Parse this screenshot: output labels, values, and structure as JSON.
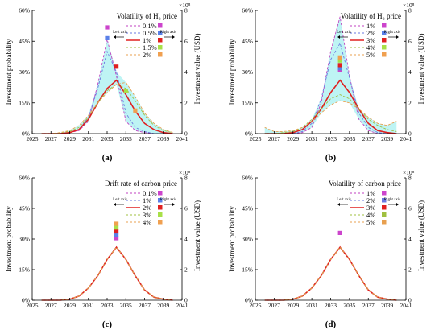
{
  "chart_data": [
    {
      "type": "line",
      "panel_label": "(a)",
      "title": "Volatility of H₂ price",
      "xlabel": "",
      "ylabel": "Investment probability",
      "ylabel_right": "Investment value (USD)",
      "right_multiplier": "×10⁸",
      "xlim": [
        2025,
        2041
      ],
      "ylim": [
        0,
        60
      ],
      "ylim_right": [
        0,
        8
      ],
      "x_ticks": [
        "2025",
        "2027",
        "2029",
        "2031",
        "2033",
        "2035",
        "2037",
        "2039",
        "2041"
      ],
      "y_ticks": [
        "0%",
        "15%",
        "30%",
        "45%",
        "60%"
      ],
      "y_ticks_right": [
        "0",
        "2",
        "4",
        "6",
        "8"
      ],
      "axis_arrows": {
        "left": "Left axis",
        "right": "Right axis"
      },
      "band": true,
      "x": [
        2026,
        2027,
        2028,
        2029,
        2030,
        2031,
        2032,
        2033,
        2034,
        2035,
        2036,
        2037,
        2038,
        2039,
        2040
      ],
      "series": [
        {
          "name": "0.1%",
          "color": "#c040c0",
          "dash": "dash",
          "values": [
            0,
            0,
            0,
            0.5,
            1.5,
            6,
            24,
            46,
            28,
            6,
            1.5,
            0.5,
            0,
            0,
            0
          ]
        },
        {
          "name": "0.5%",
          "color": "#6a78e0",
          "dash": "dash",
          "values": [
            0,
            0,
            0,
            0.5,
            2,
            8,
            22,
            40,
            30,
            10,
            3,
            1,
            0,
            0,
            0
          ]
        },
        {
          "name": "1%",
          "color": "#e02020",
          "dash": "solid",
          "values": [
            0,
            0,
            0,
            0.5,
            2,
            7,
            15,
            22,
            26,
            19,
            11,
            5,
            2,
            0.5,
            0
          ]
        },
        {
          "name": "1.5%",
          "color": "#a0c040",
          "dash": "dash",
          "values": [
            0,
            0,
            0.5,
            1,
            3,
            8,
            15,
            21,
            24,
            22,
            16,
            9,
            4,
            1.5,
            0.5
          ]
        },
        {
          "name": "2%",
          "color": "#e8a050",
          "dash": "dash",
          "values": [
            0,
            0,
            0.5,
            1.5,
            4,
            9,
            15,
            20,
            24,
            25,
            18,
            10,
            5,
            2,
            0.5
          ]
        }
      ],
      "value_markers": [
        {
          "series": "0.1%",
          "x": 2033,
          "value": 6.9,
          "color": "#cc44cc"
        },
        {
          "series": "0.5%",
          "x": 2033,
          "value": 6.2,
          "color": "#5a80e8"
        },
        {
          "series": "1%",
          "x": 2034,
          "value": 4.35,
          "color": "#e02020"
        },
        {
          "series": "1.5%",
          "x": 2035,
          "value": 2.75,
          "color": "#a8e048"
        },
        {
          "series": "2%",
          "x": 2036,
          "value": 1.5,
          "color": "#f0a050"
        }
      ]
    },
    {
      "type": "line",
      "panel_label": "(b)",
      "title": "Volatility of H₂ price",
      "xlabel": "",
      "ylabel": "Investment probability",
      "ylabel_right": "Investment value (USD)",
      "right_multiplier": "×10⁸",
      "xlim": [
        2025,
        2041
      ],
      "ylim": [
        0,
        60
      ],
      "ylim_right": [
        0,
        8
      ],
      "x_ticks": [
        "2025",
        "2027",
        "2029",
        "2031",
        "2033",
        "2035",
        "2037",
        "2039",
        "2041"
      ],
      "y_ticks": [
        "0%",
        "15%",
        "30%",
        "45%",
        "60%"
      ],
      "y_ticks_right": [
        "0",
        "2",
        "4",
        "6",
        "8"
      ],
      "axis_arrows": {
        "left": "Left axis",
        "right": "Right axis"
      },
      "band": true,
      "x": [
        2026,
        2027,
        2028,
        2029,
        2030,
        2031,
        2032,
        2033,
        2034,
        2035,
        2036,
        2037,
        2038,
        2039,
        2040
      ],
      "series": [
        {
          "name": "1%",
          "color": "#c040c0",
          "dash": "dash",
          "values": [
            0,
            0,
            0,
            0,
            0.5,
            3,
            15,
            40,
            57,
            28,
            7,
            1.5,
            0,
            0,
            0
          ]
        },
        {
          "name": "2%",
          "color": "#6a78e0",
          "dash": "dash",
          "values": [
            0,
            0,
            0,
            0,
            1,
            5,
            17,
            36,
            44,
            27,
            10,
            3,
            0.5,
            0,
            0
          ]
        },
        {
          "name": "3%",
          "color": "#e02020",
          "dash": "solid",
          "values": [
            0,
            0,
            0,
            0.5,
            2,
            6,
            12,
            20,
            26,
            20,
            12,
            5,
            1.5,
            0.5,
            0
          ]
        },
        {
          "name": "4%",
          "color": "#a0c040",
          "dash": "dash",
          "values": [
            0,
            0,
            0.5,
            1,
            3,
            7,
            12,
            17,
            19,
            17,
            12,
            7,
            4,
            2,
            1
          ]
        },
        {
          "name": "5%",
          "color": "#e8a050",
          "dash": "dash",
          "values": [
            3,
            1,
            1,
            1.5,
            3,
            6,
            10,
            14,
            16,
            15,
            12,
            8,
            5,
            4,
            6
          ]
        }
      ],
      "value_markers": [
        {
          "series": "1%",
          "x": 2034,
          "value": 4.15,
          "color": "#cc44cc"
        },
        {
          "series": "2%",
          "x": 2034,
          "value": 4.25,
          "color": "#5a80e8"
        },
        {
          "series": "3%",
          "x": 2034,
          "value": 4.45,
          "color": "#e02020"
        },
        {
          "series": "4%",
          "x": 2034,
          "value": 4.75,
          "color": "#a8e048"
        },
        {
          "series": "5%",
          "x": 2034,
          "value": 4.95,
          "color": "#f0a050"
        }
      ]
    },
    {
      "type": "line",
      "panel_label": "(c)",
      "title": "Drift rate of carbon price",
      "xlabel": "",
      "ylabel": "Investment probability",
      "ylabel_right": "Investment value (USD)",
      "right_multiplier": "×10⁸",
      "xlim": [
        2025,
        2041
      ],
      "ylim": [
        0,
        60
      ],
      "ylim_right": [
        0,
        8
      ],
      "x_ticks": [
        "2025",
        "2027",
        "2029",
        "2031",
        "2033",
        "2035",
        "2037",
        "2039",
        "2041"
      ],
      "y_ticks": [
        "0%",
        "15%",
        "30%",
        "45%",
        "60%"
      ],
      "y_ticks_right": [
        "0",
        "2",
        "4",
        "6",
        "8"
      ],
      "axis_arrows": {
        "left": "Left axis",
        "right": "Right axis"
      },
      "band": false,
      "x": [
        2026,
        2027,
        2028,
        2029,
        2030,
        2031,
        2032,
        2033,
        2034,
        2035,
        2036,
        2037,
        2038,
        2039,
        2040
      ],
      "series": [
        {
          "name": "0.1%",
          "color": "#c040c0",
          "dash": "dash",
          "values": [
            0,
            0,
            0,
            0.5,
            2,
            6,
            12,
            20,
            26,
            20,
            12,
            5,
            1.5,
            0.5,
            0
          ]
        },
        {
          "name": "1%",
          "color": "#6a78e0",
          "dash": "dash",
          "values": [
            0,
            0,
            0,
            0.5,
            2,
            6,
            12,
            20,
            26,
            20,
            12,
            5,
            1.5,
            0.5,
            0
          ]
        },
        {
          "name": "2%",
          "color": "#e02020",
          "dash": "solid",
          "values": [
            0,
            0,
            0,
            0.5,
            2,
            6,
            12,
            20,
            26,
            20,
            12,
            5,
            1.5,
            0.5,
            0
          ]
        },
        {
          "name": "3%",
          "color": "#a0c040",
          "dash": "dash",
          "values": [
            0,
            0,
            0,
            0.5,
            2,
            6,
            12,
            20,
            26,
            20,
            12,
            5,
            1.5,
            0.5,
            0
          ]
        },
        {
          "name": "4%",
          "color": "#e8a050",
          "dash": "dash",
          "values": [
            0,
            0,
            0,
            0.5,
            2,
            6,
            12,
            20,
            26,
            20,
            12,
            5,
            1.5,
            0.5,
            0
          ]
        }
      ],
      "value_markers": [
        {
          "series": "0.1%",
          "x": 2034,
          "value": 4.05,
          "color": "#cc44cc"
        },
        {
          "series": "1%",
          "x": 2034,
          "value": 4.25,
          "color": "#5a80e8"
        },
        {
          "series": "2%",
          "x": 2034,
          "value": 4.5,
          "color": "#e02020"
        },
        {
          "series": "3%",
          "x": 2034,
          "value": 4.75,
          "color": "#a8e048"
        },
        {
          "series": "4%",
          "x": 2034,
          "value": 5.0,
          "color": "#f0a050"
        }
      ]
    },
    {
      "type": "line",
      "panel_label": "(d)",
      "title": "Volatility of carbon price",
      "xlabel": "",
      "ylabel": "Investment probability",
      "ylabel_right": "Investment value (USD)",
      "right_multiplier": "×10⁸",
      "xlim": [
        2025,
        2041
      ],
      "ylim": [
        0,
        60
      ],
      "ylim_right": [
        0,
        8
      ],
      "x_ticks": [
        "2025",
        "2027",
        "2029",
        "2031",
        "2033",
        "2035",
        "2037",
        "2039",
        "2041"
      ],
      "y_ticks": [
        "0%",
        "15%",
        "30%",
        "45%",
        "60%"
      ],
      "y_ticks_right": [
        "0",
        "2",
        "4",
        "6",
        "8"
      ],
      "axis_arrows": {
        "left": "Left axis",
        "right": "Right axis"
      },
      "band": false,
      "x": [
        2026,
        2027,
        2028,
        2029,
        2030,
        2031,
        2032,
        2033,
        2034,
        2035,
        2036,
        2037,
        2038,
        2039,
        2040
      ],
      "series": [
        {
          "name": "1%",
          "color": "#c040c0",
          "dash": "dash",
          "values": [
            0,
            0,
            0,
            0.5,
            2,
            6,
            12,
            20,
            26,
            20,
            12,
            5,
            1.5,
            0.5,
            0
          ]
        },
        {
          "name": "2%",
          "color": "#6a78e0",
          "dash": "dash",
          "values": [
            0,
            0,
            0,
            0.5,
            2,
            6,
            12,
            20,
            26,
            20,
            12,
            5,
            1.5,
            0.5,
            0
          ]
        },
        {
          "name": "3%",
          "color": "#e02020",
          "dash": "solid",
          "values": [
            0,
            0,
            0,
            0.5,
            2,
            6,
            12,
            20,
            26,
            20,
            12,
            5,
            1.5,
            0.5,
            0
          ]
        },
        {
          "name": "4%",
          "color": "#a0c040",
          "dash": "dash",
          "values": [
            0,
            0,
            0,
            0.5,
            2,
            6,
            12,
            20,
            26,
            20,
            12,
            5,
            1.5,
            0.5,
            0
          ]
        },
        {
          "name": "5%",
          "color": "#e8a050",
          "dash": "dash",
          "values": [
            0,
            0,
            0,
            0.5,
            2,
            6,
            12,
            20,
            26,
            20,
            12,
            5,
            1.5,
            0.5,
            0
          ]
        }
      ],
      "value_markers": [
        {
          "series": "1%",
          "x": 2034,
          "value": 4.4,
          "color": "#cc44cc"
        }
      ]
    }
  ]
}
